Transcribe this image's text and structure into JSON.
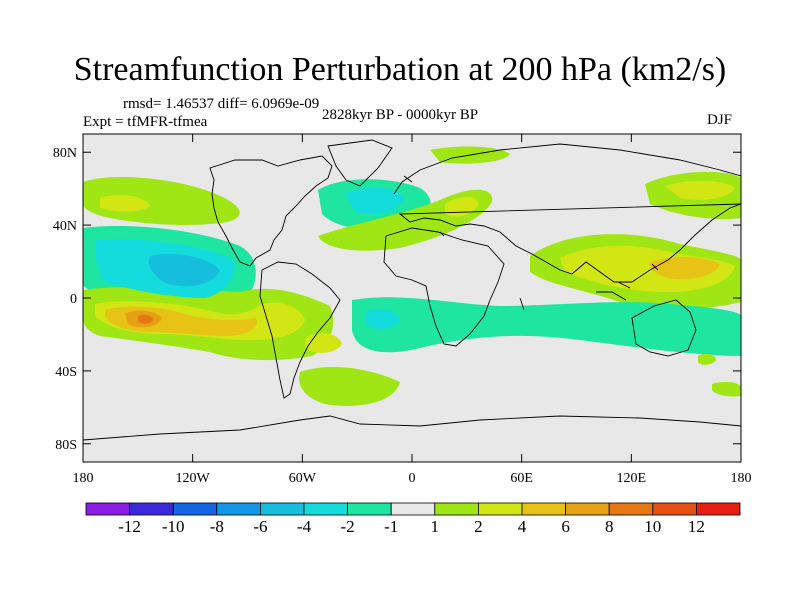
{
  "title": "Streamfunction Perturbation at 200 hPa (km2/s)",
  "stats": "rmsd= 1.46537 diff= 6.0969e-09",
  "experiment": "Expt = tfMFR-tfmea",
  "period": "2828kyr BP - 0000kyr BP",
  "season": "DJF",
  "chart_data": {
    "type": "contour-map",
    "variable": "Streamfunction perturbation",
    "level": "200 hPa",
    "units": "km2/s",
    "lon_range": [
      -180,
      180
    ],
    "lat_range": [
      -90,
      90
    ],
    "lat_ticks": [
      {
        "value": 80,
        "label": "80N"
      },
      {
        "value": 40,
        "label": "40N"
      },
      {
        "value": 0,
        "label": "0"
      },
      {
        "value": -40,
        "label": "40S"
      },
      {
        "value": -80,
        "label": "80S"
      }
    ],
    "lon_ticks": [
      {
        "value": -180,
        "label": "180"
      },
      {
        "value": -120,
        "label": "120W"
      },
      {
        "value": -60,
        "label": "60W"
      },
      {
        "value": 0,
        "label": "0"
      },
      {
        "value": 60,
        "label": "60E"
      },
      {
        "value": 120,
        "label": "120E"
      },
      {
        "value": 180,
        "label": "180"
      }
    ],
    "colorbar": {
      "colors": [
        "#8a1ee6",
        "#3c28dc",
        "#1464e6",
        "#1496e6",
        "#14bedc",
        "#14dcdc",
        "#1ee6a0",
        "#e8e8e8",
        "#a0e614",
        "#d2e614",
        "#e6c314",
        "#e6a014",
        "#e67814",
        "#e65014",
        "#e61e14"
      ],
      "labels": [
        "-12",
        "-10",
        "-8",
        "-6",
        "-4",
        "-2",
        "-1",
        "1",
        "2",
        "4",
        "6",
        "8",
        "10",
        "12"
      ]
    },
    "regions": [
      {
        "level": 1,
        "sign": "+",
        "lon": [
          -180,
          -120
        ],
        "lat": [
          35,
          60
        ],
        "peak": 2.5
      },
      {
        "level": 1,
        "sign": "-",
        "lon": [
          -180,
          -80
        ],
        "lat": [
          5,
          45
        ],
        "peak": -4
      },
      {
        "level": 1,
        "sign": "+",
        "lon": [
          -180,
          -50
        ],
        "lat": [
          -35,
          0
        ],
        "peak": 5.5
      },
      {
        "level": 1,
        "sign": "-",
        "lon": [
          -60,
          -10
        ],
        "lat": [
          40,
          70
        ],
        "peak": -3
      },
      {
        "level": 1,
        "sign": "+",
        "lon": [
          -20,
          40
        ],
        "lat": [
          25,
          65
        ],
        "peak": 2
      },
      {
        "level": 1,
        "sign": "+",
        "lon": [
          -10,
          50
        ],
        "lat": [
          75,
          85
        ],
        "peak": 1.5
      },
      {
        "level": 1,
        "sign": "+",
        "lon": [
          70,
          180
        ],
        "lat": [
          5,
          35
        ],
        "peak": 4
      },
      {
        "level": 1,
        "sign": "+",
        "lon": [
          130,
          180
        ],
        "lat": [
          45,
          70
        ],
        "peak": 3
      },
      {
        "level": 1,
        "sign": "-",
        "lon": [
          0,
          180
        ],
        "lat": [
          -40,
          -5
        ],
        "peak": -3
      },
      {
        "level": 1,
        "sign": "+",
        "lon": [
          -60,
          0
        ],
        "lat": [
          -60,
          -40
        ],
        "peak": 1.5
      }
    ]
  }
}
